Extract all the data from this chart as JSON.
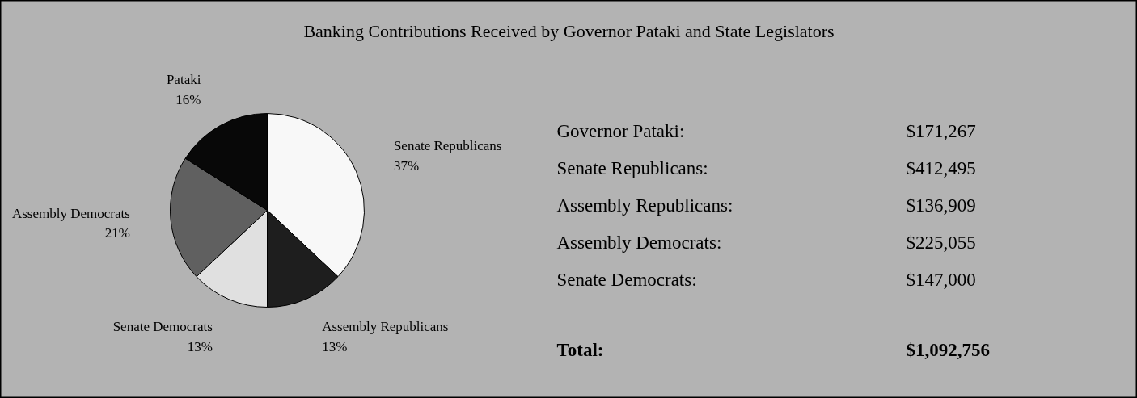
{
  "chart_data": {
    "type": "pie",
    "title": "Banking Contributions Received by Governor Pataki and State Legislators",
    "categories": [
      "Senate Republicans",
      "Assembly Republicans",
      "Senate Democrats",
      "Assembly Democrats",
      "Pataki"
    ],
    "values": [
      37,
      13,
      13,
      21,
      16
    ],
    "value_labels": [
      "37%",
      "13%",
      "13%",
      "21%",
      "16%"
    ],
    "colors": [
      "#f8f8f8",
      "#1e1e1e",
      "#e0e0e0",
      "#606060",
      "#080808"
    ],
    "annotations": [
      "Governor Pataki:",
      "$171,267",
      "Senate Republicans:",
      "$412,495",
      "Assembly Republicans:",
      "$136,909",
      "Assembly Democrats:",
      "$225,055",
      "Senate Democrats:",
      "$147,000",
      "Total:",
      "$1,092,756"
    ]
  }
}
